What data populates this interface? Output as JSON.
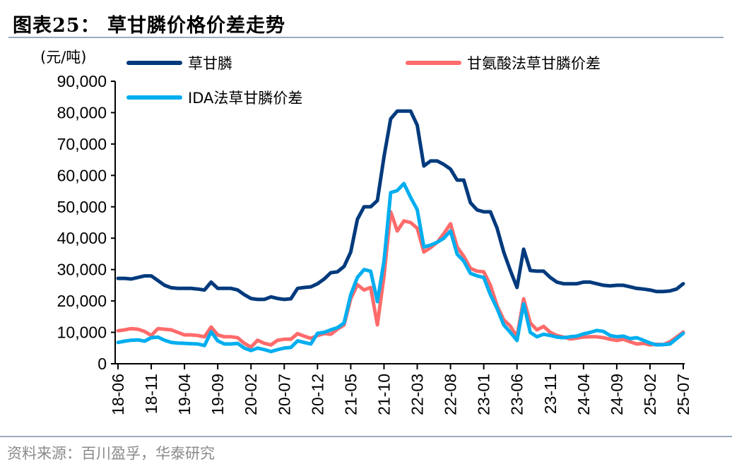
{
  "header": {
    "title": "图表25：  草甘膦价格价差走势",
    "source": "资料来源：百川盈孚，华泰研究"
  },
  "chart_data": {
    "type": "line",
    "title": "草甘膦价格价差走势",
    "ylabel": "(元/吨)",
    "xlabel": "",
    "ylim": [
      0,
      90000
    ],
    "yticks": [
      "0",
      "10,000",
      "20,000",
      "30,000",
      "40,000",
      "50,000",
      "60,000",
      "70,000",
      "80,000",
      "90,000"
    ],
    "xtick_labels": [
      "18-06",
      "18-11",
      "19-04",
      "19-09",
      "20-02",
      "20-07",
      "20-12",
      "21-05",
      "21-10",
      "22-03",
      "22-08",
      "23-01",
      "23-06",
      "23-11",
      "24-04",
      "24-09",
      "25-02",
      "25-07"
    ],
    "grid": false,
    "legend_position": "top",
    "x": [
      "2018-06",
      "2018-07",
      "2018-08",
      "2018-09",
      "2018-10",
      "2018-11",
      "2018-12",
      "2019-01",
      "2019-02",
      "2019-03",
      "2019-04",
      "2019-05",
      "2019-06",
      "2019-07",
      "2019-08",
      "2019-09",
      "2019-10",
      "2019-11",
      "2019-12",
      "2020-01",
      "2020-02",
      "2020-03",
      "2020-04",
      "2020-05",
      "2020-06",
      "2020-07",
      "2020-08",
      "2020-09",
      "2020-10",
      "2020-11",
      "2020-12",
      "2021-01",
      "2021-02",
      "2021-03",
      "2021-04",
      "2021-05",
      "2021-06",
      "2021-07",
      "2021-08",
      "2021-09",
      "2021-10",
      "2021-11",
      "2021-12",
      "2022-01",
      "2022-02",
      "2022-03",
      "2022-04",
      "2022-05",
      "2022-06",
      "2022-07",
      "2022-08",
      "2022-09",
      "2022-10",
      "2022-11",
      "2022-12",
      "2023-01",
      "2023-02",
      "2023-03",
      "2023-04",
      "2023-05",
      "2023-06",
      "2023-07",
      "2023-08",
      "2023-09",
      "2023-10",
      "2023-11",
      "2023-12",
      "2024-01",
      "2024-02",
      "2024-03",
      "2024-04",
      "2024-05",
      "2024-06",
      "2024-07",
      "2024-08",
      "2024-09",
      "2024-10",
      "2024-11",
      "2024-12",
      "2025-01",
      "2025-02",
      "2025-03",
      "2025-04",
      "2025-05",
      "2025-06",
      "2025-07"
    ],
    "series": [
      {
        "name": "草甘膦",
        "color": "#003A7D",
        "values": [
          27200,
          27200,
          27000,
          27500,
          28000,
          28000,
          26500,
          25000,
          24200,
          24000,
          24000,
          24000,
          23800,
          23500,
          26000,
          24000,
          24000,
          24000,
          23500,
          22000,
          20800,
          20500,
          20500,
          21300,
          20800,
          20500,
          20700,
          24000,
          24300,
          24500,
          25500,
          27000,
          29000,
          29300,
          31000,
          35600,
          46000,
          50000,
          50000,
          52000,
          66000,
          78000,
          80500,
          80500,
          80500,
          76000,
          63000,
          64600,
          64600,
          63500,
          62000,
          58500,
          58500,
          51300,
          49000,
          48400,
          48400,
          43200,
          35600,
          29700,
          24300,
          36500,
          29700,
          29500,
          29500,
          27500,
          26000,
          25500,
          25500,
          25500,
          26000,
          26000,
          25500,
          25000,
          24800,
          25000,
          25000,
          24500,
          24000,
          23800,
          23500,
          23000,
          23000,
          23200,
          23800,
          25500
        ]
      },
      {
        "name": "甘氨酸法草甘膦价差",
        "color": "#FF6B6B",
        "values": [
          10500,
          10800,
          11200,
          11000,
          10300,
          9000,
          11200,
          11000,
          10800,
          10000,
          9200,
          9200,
          9000,
          8600,
          11700,
          9200,
          8600,
          8600,
          8300,
          6500,
          5300,
          7500,
          6500,
          6000,
          7500,
          7800,
          7800,
          9600,
          8800,
          8100,
          9000,
          9600,
          9400,
          11000,
          12400,
          20700,
          25200,
          23500,
          24300,
          12400,
          28000,
          48400,
          42300,
          45500,
          45000,
          43200,
          35600,
          37000,
          38700,
          41500,
          44600,
          37200,
          34200,
          30400,
          29500,
          29300,
          25000,
          18500,
          14000,
          12000,
          8600,
          20700,
          13000,
          10800,
          11900,
          10000,
          9000,
          8500,
          7900,
          8200,
          8500,
          8600,
          8600,
          8300,
          7800,
          7400,
          7800,
          7000,
          6300,
          6500,
          6000,
          6200,
          6100,
          7000,
          8500,
          10100
        ]
      },
      {
        "name": "IDA法草甘膦价差",
        "color": "#00AEEF",
        "values": [
          6800,
          7200,
          7500,
          7600,
          7200,
          8300,
          8500,
          7500,
          6800,
          6600,
          6500,
          6400,
          6300,
          5800,
          10200,
          7300,
          6300,
          6300,
          6500,
          5000,
          4200,
          5000,
          4500,
          3900,
          4500,
          5000,
          5200,
          7300,
          6800,
          6300,
          9700,
          10000,
          10800,
          11500,
          13000,
          22000,
          27500,
          30000,
          29500,
          19800,
          32700,
          54500,
          55200,
          57400,
          53000,
          49100,
          37200,
          37800,
          38700,
          40000,
          42300,
          34900,
          32700,
          28800,
          28000,
          27500,
          22000,
          17600,
          12400,
          10000,
          7400,
          19100,
          10000,
          8600,
          9400,
          9000,
          8500,
          8300,
          8600,
          8800,
          9500,
          10000,
          10600,
          10300,
          9000,
          8600,
          8800,
          8000,
          8300,
          7500,
          6600,
          6000,
          6100,
          6300,
          8000,
          9700
        ]
      }
    ]
  }
}
